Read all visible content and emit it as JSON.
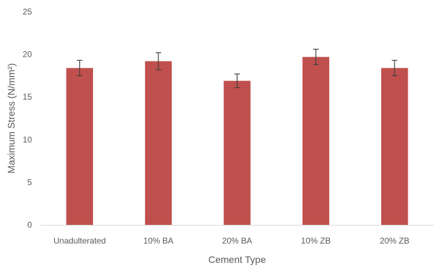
{
  "chart_data": {
    "type": "bar",
    "title": "",
    "xlabel": "Cement Type",
    "ylabel": "Maximum Stress (N/mm²)",
    "categories": [
      "Unadulterated",
      "10% BA",
      "20% BA",
      "10% ZB",
      "20% ZB"
    ],
    "values": [
      18.4,
      19.2,
      16.9,
      19.7,
      18.4
    ],
    "error": [
      0.9,
      1.0,
      0.8,
      0.9,
      0.9
    ],
    "ylim": [
      0,
      25
    ],
    "yticks": [
      "0",
      "5",
      "10",
      "15",
      "20",
      "25"
    ],
    "grid": false,
    "legend": "none",
    "colors": {
      "bar": "#C0504D",
      "error_bar": "#404040",
      "axis": "#d9d9d9",
      "text": "#595959"
    }
  }
}
